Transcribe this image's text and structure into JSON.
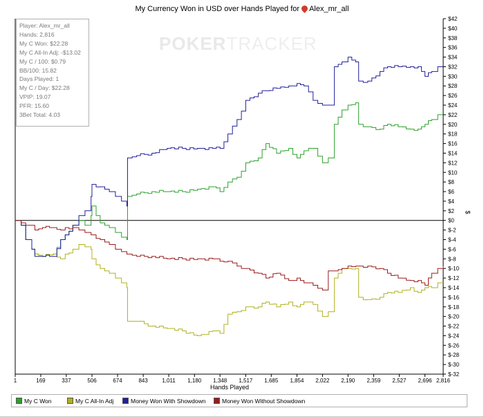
{
  "chart_data": {
    "type": "line",
    "title": "My Currency Won in USD over Hands Played for",
    "player_name": "Alex_mr_all",
    "xlabel": "Hands Played",
    "ylabel": "$",
    "xlim": [
      1,
      2816
    ],
    "ylim": [
      -32,
      42
    ],
    "x_ticks": [
      1,
      169,
      337,
      506,
      674,
      843,
      1011,
      1180,
      1348,
      1517,
      1685,
      1854,
      2022,
      2190,
      2359,
      2527,
      2696,
      2816
    ],
    "x_tick_labels": [
      "1",
      "169",
      "337",
      "506",
      "674",
      "843",
      "1,011",
      "1,180",
      "1,348",
      "1,517",
      "1,685",
      "1,854",
      "2,022",
      "2,190",
      "2,359",
      "2,527",
      "2,696",
      "2,816"
    ],
    "y_ticks": [
      42,
      40,
      38,
      36,
      34,
      32,
      30,
      28,
      26,
      24,
      22,
      20,
      18,
      16,
      14,
      12,
      10,
      8,
      6,
      4,
      2,
      0,
      -2,
      -4,
      -6,
      -8,
      -10,
      -12,
      -14,
      -16,
      -18,
      -20,
      -22,
      -24,
      -26,
      -28,
      -30,
      -32
    ],
    "y_tick_labels": [
      "$42",
      "$40",
      "$38",
      "$36",
      "$34",
      "$32",
      "$30",
      "$28",
      "$26",
      "$24",
      "$22",
      "$20",
      "$18",
      "$16",
      "$14",
      "$12",
      "$10",
      "$8",
      "$6",
      "$4",
      "$2",
      "$0",
      "$-2",
      "$-4",
      "$-6",
      "$-8",
      "$-10",
      "$-12",
      "$-14",
      "$-16",
      "$-18",
      "$-20",
      "$-22",
      "$-24",
      "$-26",
      "$-28",
      "$-30",
      "$-32"
    ],
    "grid": false,
    "zero_line": true,
    "series": [
      {
        "name": "My C Won",
        "color": "#2ca02c",
        "x": [
          1,
          40,
          70,
          110,
          130,
          180,
          250,
          300,
          330,
          380,
          420,
          460,
          500,
          506,
          560,
          620,
          660,
          700,
          735,
          740,
          800,
          900,
          1000,
          1100,
          1200,
          1300,
          1348,
          1400,
          1460,
          1517,
          1600,
          1650,
          1720,
          1800,
          1854,
          1900,
          1960,
          2022,
          2060,
          2100,
          2150,
          2190,
          2240,
          2260,
          2320,
          2400,
          2450,
          2520,
          2600,
          2650,
          2696,
          2740,
          2780,
          2816
        ],
        "y": [
          0,
          -1,
          -4,
          -6,
          -7,
          -7.5,
          -7,
          -4,
          -3,
          -1,
          0,
          -1,
          1,
          3,
          -0.5,
          -1.5,
          -2.5,
          -3.5,
          -4,
          5,
          5.5,
          6,
          6,
          6,
          6.5,
          7,
          6,
          8,
          9,
          12,
          13,
          16,
          14,
          15,
          13,
          14.5,
          15,
          12,
          13,
          20,
          23,
          24,
          24.5,
          20,
          19.5,
          19,
          20,
          19.5,
          19,
          19,
          20,
          21,
          22,
          22
        ]
      },
      {
        "name": "My C All-In Adj",
        "color": "#b0b020",
        "x": [
          1,
          40,
          70,
          110,
          130,
          180,
          250,
          300,
          330,
          380,
          420,
          460,
          500,
          506,
          560,
          620,
          660,
          700,
          735,
          740,
          800,
          900,
          1000,
          1100,
          1200,
          1300,
          1348,
          1400,
          1460,
          1517,
          1600,
          1650,
          1720,
          1800,
          1854,
          1900,
          1960,
          2022,
          2060,
          2100,
          2150,
          2190,
          2240,
          2260,
          2320,
          2400,
          2450,
          2520,
          2600,
          2650,
          2696,
          2740,
          2780,
          2816
        ],
        "y": [
          0,
          -1,
          -4,
          -6,
          -7,
          -7.5,
          -7,
          -8,
          -7,
          -6,
          -5,
          -5.5,
          -6,
          -8,
          -10,
          -11,
          -12,
          -13,
          -14,
          -21,
          -21,
          -22,
          -22.5,
          -23,
          -24,
          -23,
          -23.5,
          -19.5,
          -19,
          -18,
          -18,
          -17,
          -18,
          -17,
          -18,
          -17,
          -17.5,
          -20,
          -19,
          -12,
          -10,
          -10,
          -10,
          -16,
          -16.5,
          -16,
          -15,
          -15,
          -14,
          -15,
          -14,
          -14,
          -13,
          -13
        ]
      },
      {
        "name": "Money Won With Showdown",
        "color": "#1f1f9a",
        "x": [
          1,
          40,
          70,
          110,
          130,
          180,
          250,
          300,
          330,
          380,
          420,
          460,
          500,
          506,
          560,
          620,
          660,
          700,
          735,
          740,
          800,
          900,
          1000,
          1100,
          1200,
          1300,
          1348,
          1400,
          1460,
          1517,
          1600,
          1650,
          1720,
          1800,
          1854,
          1900,
          1960,
          2022,
          2060,
          2100,
          2150,
          2190,
          2240,
          2260,
          2320,
          2400,
          2450,
          2520,
          2600,
          2650,
          2696,
          2740,
          2780,
          2816
        ],
        "y": [
          0,
          -1,
          -4,
          -6,
          -7.5,
          -7.5,
          -7.5,
          -4,
          -3,
          -1,
          1,
          2,
          5,
          7.5,
          7,
          6,
          5,
          4,
          3,
          13,
          13.5,
          14,
          15,
          15,
          15,
          15,
          15,
          18,
          21,
          25,
          26.5,
          27,
          27.5,
          28,
          28.5,
          28,
          25,
          24,
          24,
          32,
          33,
          34,
          33,
          29,
          29,
          31,
          32,
          32,
          32,
          32,
          30,
          31,
          32,
          32
        ]
      },
      {
        "name": "Money Won Without Showdown",
        "color": "#9a1a1a",
        "x": [
          1,
          40,
          70,
          110,
          130,
          180,
          250,
          300,
          330,
          380,
          420,
          460,
          500,
          506,
          560,
          620,
          660,
          700,
          735,
          740,
          800,
          900,
          1000,
          1100,
          1200,
          1300,
          1348,
          1400,
          1460,
          1517,
          1600,
          1650,
          1720,
          1800,
          1854,
          1900,
          1960,
          2022,
          2060,
          2100,
          2150,
          2190,
          2240,
          2260,
          2320,
          2400,
          2450,
          2520,
          2600,
          2650,
          2696,
          2740,
          2780,
          2816
        ],
        "y": [
          0,
          -0.5,
          -1,
          -1,
          -2,
          -1.5,
          -1.5,
          -2,
          -1.5,
          -1.5,
          -2,
          -2.5,
          -3,
          -3,
          -4,
          -5,
          -6,
          -6.5,
          -7,
          -7,
          -7.5,
          -7.5,
          -8,
          -8,
          -8,
          -8,
          -8.5,
          -8.5,
          -9.5,
          -10,
          -11,
          -12,
          -11,
          -12.5,
          -12,
          -13,
          -13.5,
          -14.5,
          -10.5,
          -10.5,
          -10,
          -9.5,
          -9.5,
          -9.5,
          -9.5,
          -10,
          -11,
          -12,
          -12.5,
          -12.5,
          -13.5,
          -11,
          -10,
          -9.5
        ]
      }
    ]
  },
  "stats": [
    "Player: Alex_mr_all",
    "Hands: 2,816",
    "My C Won: $22.28",
    "My C All-In Adj: -$13.02",
    "My C / 100: $0.79",
    "BB/100: 15.82",
    "Days Played: 1",
    "My C / Day: $22.28",
    "VPIP: 19.07",
    "PFR: 15.60",
    "3Bet Total: 4.03"
  ],
  "watermark": {
    "bold": "POKER",
    "thin": "TRACKER"
  }
}
